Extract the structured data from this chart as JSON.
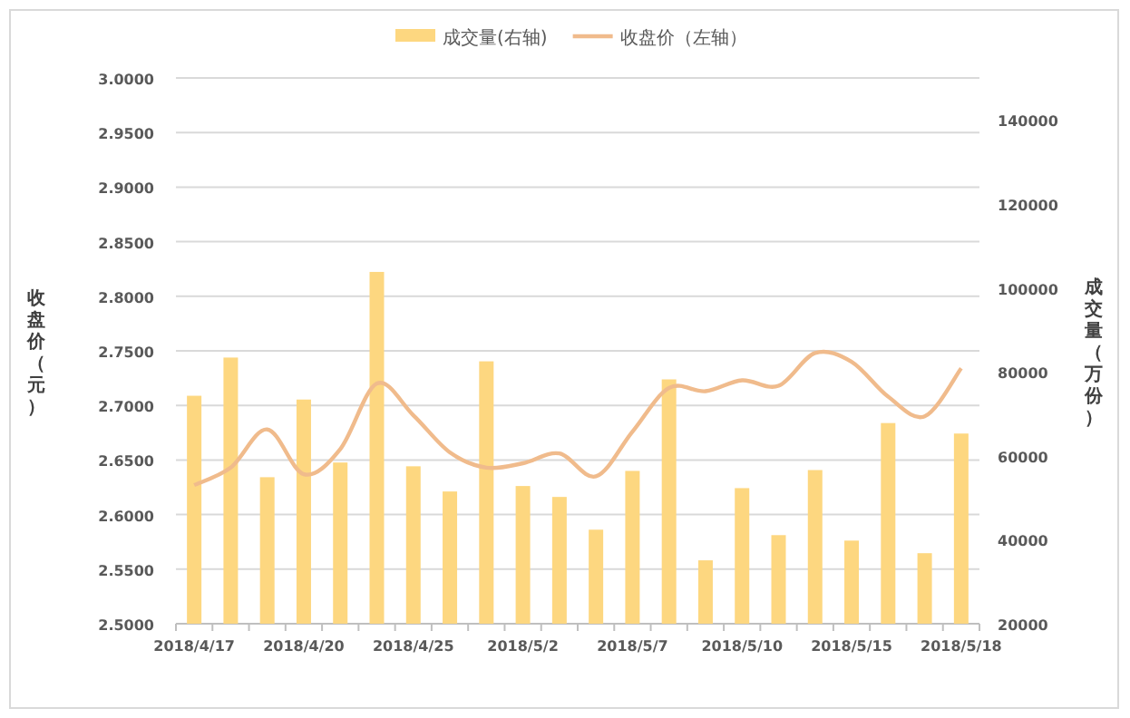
{
  "chart_data": {
    "type": "bar",
    "ylabel": "收盘价（元）",
    "y2label": "成交量（万份）",
    "categories": [
      "2018/4/17",
      null,
      null,
      "2018/4/20",
      null,
      null,
      "2018/4/25",
      null,
      null,
      "2018/5/2",
      null,
      null,
      "2018/5/7",
      null,
      null,
      "2018/5/10",
      null,
      null,
      "2018/5/15",
      null,
      null,
      "2018/5/18"
    ],
    "series": [
      {
        "name": "成交量(右轴)",
        "axis": "y2",
        "color": "#fdd780",
        "values": [
          74300,
          83400,
          54900,
          73400,
          58400,
          103800,
          57500,
          51500,
          82500,
          52800,
          50200,
          42400,
          56400,
          78200,
          35100,
          52300,
          41100,
          56600,
          39800,
          67800,
          36800,
          65300
        ]
      },
      {
        "name": "收盘价（左轴）",
        "type": "line",
        "color": "#f0bb8c",
        "values": [
          2.627,
          2.643,
          2.678,
          2.637,
          2.66,
          2.72,
          2.691,
          2.657,
          2.643,
          2.647,
          2.656,
          2.635,
          2.676,
          2.716,
          2.713,
          2.723,
          2.718,
          2.748,
          2.74,
          2.708,
          2.69,
          2.734
        ]
      }
    ],
    "ylim": [
      2.5,
      3.0
    ],
    "yticks": [
      {
        "value": 2.5,
        "label": "2.5000"
      },
      {
        "value": 2.55,
        "label": "2.5500"
      },
      {
        "value": 2.6,
        "label": "2.6000"
      },
      {
        "value": 2.65,
        "label": "2.6500"
      },
      {
        "value": 2.7,
        "label": "2.7000"
      },
      {
        "value": 2.75,
        "label": "2.7500"
      },
      {
        "value": 2.8,
        "label": "2.8000"
      },
      {
        "value": 2.85,
        "label": "2.8500"
      },
      {
        "value": 2.9,
        "label": "2.9000"
      },
      {
        "value": 2.95,
        "label": "2.9500"
      },
      {
        "value": 3.0,
        "label": "3.0000"
      }
    ],
    "y2lim": [
      20000,
      150000
    ],
    "y2ticks": [
      20000,
      40000,
      60000,
      80000,
      100000,
      120000,
      140000
    ],
    "grid": "y",
    "legend": "top",
    "marker": "none",
    "line_style": "solid"
  }
}
